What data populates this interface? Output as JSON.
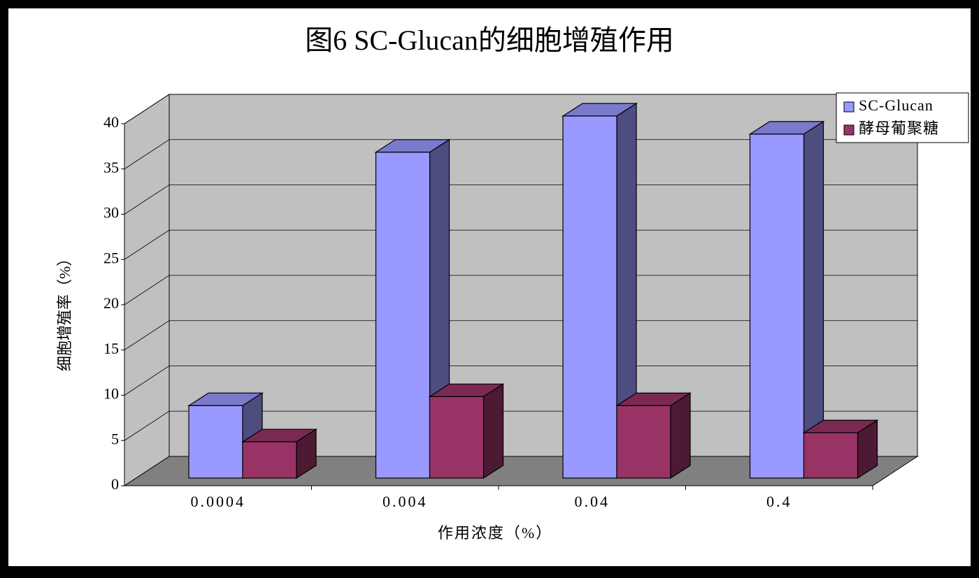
{
  "chart_data": {
    "type": "bar3d",
    "title": "图6 SC-Glucan的细胞增殖作用",
    "x_label": "作用浓度（%）",
    "y_label": "细胞增殖率（%）",
    "categories": [
      "0.0004",
      "0.004",
      "0.04",
      "0.4"
    ],
    "series": [
      {
        "name": "SC-Glucan",
        "color": "#9999ff",
        "values": [
          8,
          36,
          40,
          38
        ]
      },
      {
        "name": "酵母葡聚糖",
        "color": "#993366",
        "values": [
          4,
          9,
          8,
          5
        ]
      }
    ],
    "ylim": [
      0,
      40
    ],
    "yticks": [
      0,
      5,
      10,
      15,
      20,
      25,
      30,
      35,
      40
    ],
    "grid": true,
    "legend": "top-right"
  }
}
